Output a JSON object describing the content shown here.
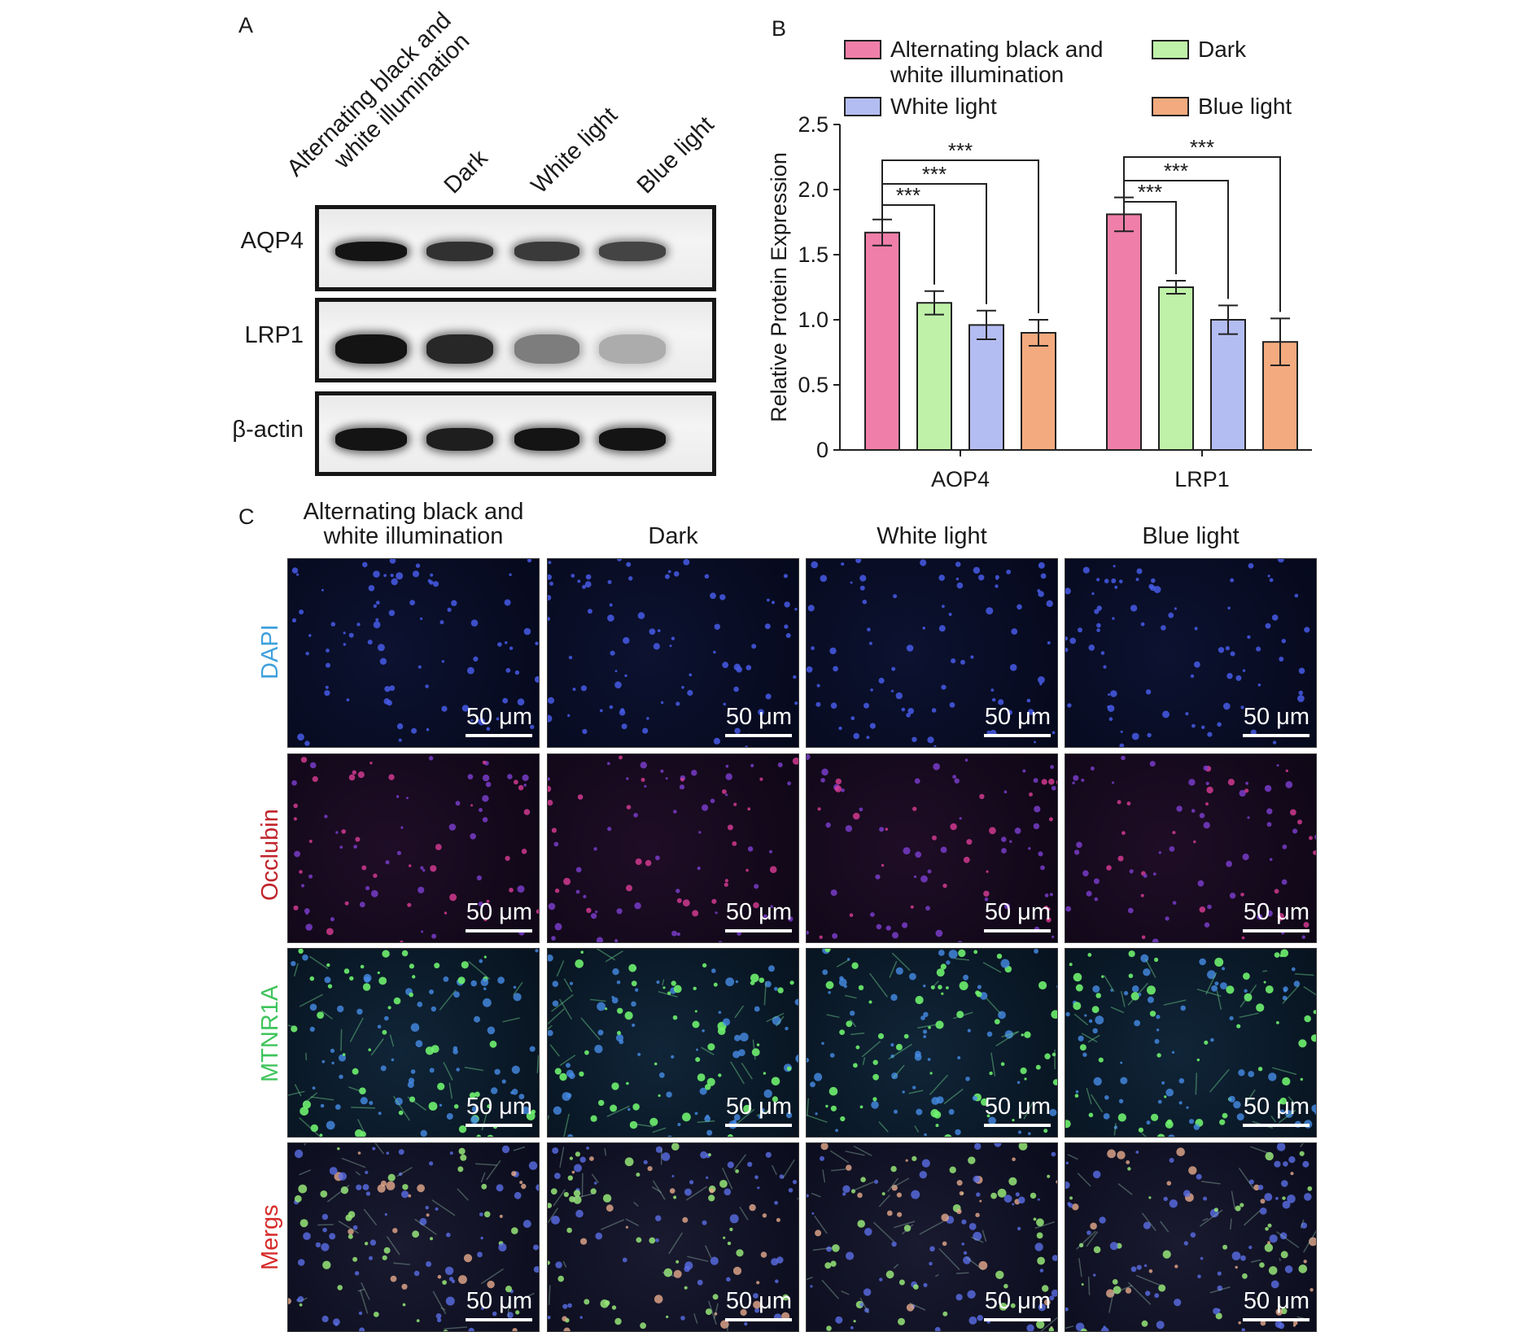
{
  "panels": {
    "a": "A",
    "b": "B",
    "c": "C"
  },
  "blot": {
    "lanes": [
      {
        "line1": "Alternating black and",
        "line2": "white illumination"
      },
      {
        "line1": "Dark",
        "line2": ""
      },
      {
        "line1": "White light",
        "line2": ""
      },
      {
        "line1": "Blue light",
        "line2": ""
      }
    ],
    "rows": [
      {
        "label": "AQP4",
        "intensity": [
          1.0,
          0.85,
          0.8,
          0.75
        ]
      },
      {
        "label": "LRP1",
        "intensity": [
          1.0,
          0.9,
          0.45,
          0.2
        ]
      },
      {
        "label": "β-actin",
        "intensity": [
          1.0,
          0.95,
          1.0,
          1.0
        ]
      }
    ]
  },
  "chart_data": {
    "type": "bar",
    "categories": [
      "AOP4",
      "LRP1"
    ],
    "series": [
      {
        "name": "Alternating black and white illumination",
        "legend_line1": "Alternating black and",
        "legend_line2": "white illumination",
        "values": [
          1.67,
          1.81
        ],
        "errors": [
          0.1,
          0.13
        ],
        "color": "#ef7fa8"
      },
      {
        "name": "Dark",
        "legend_line1": "Dark",
        "legend_line2": "",
        "values": [
          1.13,
          1.25
        ],
        "errors": [
          0.09,
          0.05
        ],
        "color": "#bff2a8"
      },
      {
        "name": "White light",
        "legend_line1": "White light",
        "legend_line2": "",
        "values": [
          0.96,
          1.0
        ],
        "errors": [
          0.11,
          0.11
        ],
        "color": "#b4bdf2"
      },
      {
        "name": "Blue light",
        "legend_line1": "Blue light",
        "legend_line2": "",
        "values": [
          0.9,
          0.83
        ],
        "errors": [
          0.1,
          0.18
        ],
        "color": "#f3aa7e"
      }
    ],
    "ylabel": "Relative Protein Expression",
    "ylim": [
      0,
      2.5
    ],
    "yticks": [
      "0",
      "0.5",
      "1.0",
      "1.5",
      "2.0",
      "2.5"
    ],
    "significance": "***",
    "legend_position": "top"
  },
  "microscopy": {
    "columns": [
      {
        "line1": "Alternating black and",
        "line2": "white illumination"
      },
      {
        "line1": "",
        "line2": "Dark"
      },
      {
        "line1": "",
        "line2": "White light"
      },
      {
        "line1": "",
        "line2": "Blue light"
      }
    ],
    "rows": [
      {
        "label": "DAPI",
        "color": "#3fa0dc"
      },
      {
        "label": "Occlubin",
        "color": "#c0242c"
      },
      {
        "label": "MTNR1A",
        "color": "#3fc45c"
      },
      {
        "label": "Mergs",
        "color": "#d62b2b"
      }
    ],
    "scale_label": "50 μm"
  }
}
